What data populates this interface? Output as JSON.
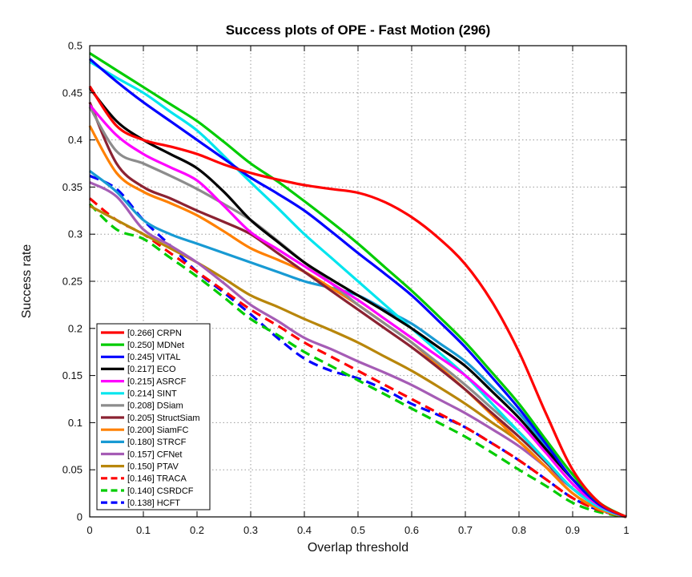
{
  "chart_data": {
    "type": "line",
    "title": "Success plots of OPE - Fast Motion (296)",
    "xlabel": "Overlap threshold",
    "ylabel": "Success rate",
    "xlim": [
      0,
      1
    ],
    "ylim": [
      0,
      0.5
    ],
    "grid": true,
    "legend_position": "bottom-left",
    "xticks": [
      0,
      0.1,
      0.2,
      0.3,
      0.4,
      0.5,
      0.6,
      0.7,
      0.8,
      0.9,
      1
    ],
    "xtick_labels": [
      "0",
      "0.1",
      "0.2",
      "0.3",
      "0.4",
      "0.5",
      "0.6",
      "0.7",
      "0.8",
      "0.9",
      "1"
    ],
    "yticks": [
      0,
      0.05,
      0.1,
      0.15,
      0.2,
      0.25,
      0.3,
      0.35,
      0.4,
      0.45,
      0.5
    ],
    "ytick_labels": [
      "0",
      "0.05",
      "0.1",
      "0.15",
      "0.2",
      "0.25",
      "0.3",
      "0.35",
      "0.4",
      "0.45",
      "0.5"
    ],
    "x": [
      0,
      0.05,
      0.1,
      0.15,
      0.2,
      0.25,
      0.3,
      0.35,
      0.4,
      0.45,
      0.5,
      0.55,
      0.6,
      0.65,
      0.7,
      0.75,
      0.8,
      0.85,
      0.9,
      0.95,
      1
    ],
    "series": [
      {
        "name": "CRPN",
        "auc": 0.266,
        "label": "[0.266] CRPN",
        "color": "#ff0000",
        "style": "solid",
        "values": [
          0.457,
          0.415,
          0.4,
          0.393,
          0.385,
          0.374,
          0.365,
          0.358,
          0.352,
          0.348,
          0.344,
          0.334,
          0.318,
          0.296,
          0.268,
          0.228,
          0.175,
          0.11,
          0.05,
          0.015,
          0
        ]
      },
      {
        "name": "MDNet",
        "auc": 0.25,
        "label": "[0.250] MDNet",
        "color": "#00cc00",
        "style": "solid",
        "values": [
          0.492,
          0.474,
          0.456,
          0.438,
          0.42,
          0.398,
          0.375,
          0.356,
          0.335,
          0.313,
          0.29,
          0.265,
          0.24,
          0.213,
          0.185,
          0.153,
          0.12,
          0.082,
          0.045,
          0.015,
          0
        ]
      },
      {
        "name": "VITAL",
        "auc": 0.245,
        "label": "[0.245] VITAL",
        "color": "#0000ff",
        "style": "solid",
        "values": [
          0.486,
          0.462,
          0.44,
          0.42,
          0.4,
          0.38,
          0.36,
          0.343,
          0.325,
          0.303,
          0.28,
          0.258,
          0.235,
          0.208,
          0.18,
          0.148,
          0.115,
          0.078,
          0.04,
          0.013,
          0
        ]
      },
      {
        "name": "ECO",
        "auc": 0.217,
        "label": "[0.217] ECO",
        "color": "#000000",
        "style": "solid",
        "values": [
          0.455,
          0.42,
          0.4,
          0.385,
          0.37,
          0.345,
          0.315,
          0.292,
          0.27,
          0.252,
          0.235,
          0.218,
          0.2,
          0.18,
          0.16,
          0.133,
          0.105,
          0.072,
          0.04,
          0.013,
          0
        ]
      },
      {
        "name": "ASRCF",
        "auc": 0.215,
        "label": "[0.215] ASRCF",
        "color": "#ff00ff",
        "style": "solid",
        "values": [
          0.437,
          0.405,
          0.385,
          0.371,
          0.357,
          0.33,
          0.302,
          0.284,
          0.266,
          0.248,
          0.23,
          0.21,
          0.19,
          0.17,
          0.15,
          0.125,
          0.1,
          0.068,
          0.035,
          0.012,
          0
        ]
      },
      {
        "name": "SINT",
        "auc": 0.214,
        "label": "[0.214] SINT",
        "color": "#00e5ee",
        "style": "solid",
        "values": [
          0.483,
          0.466,
          0.45,
          0.43,
          0.41,
          0.383,
          0.355,
          0.328,
          0.3,
          0.275,
          0.25,
          0.225,
          0.2,
          0.175,
          0.15,
          0.12,
          0.09,
          0.06,
          0.03,
          0.01,
          0
        ]
      },
      {
        "name": "DSiam",
        "auc": 0.208,
        "label": "[0.208] DSiam",
        "color": "#8c8c8c",
        "style": "solid",
        "values": [
          0.435,
          0.388,
          0.375,
          0.362,
          0.348,
          0.332,
          0.315,
          0.293,
          0.27,
          0.248,
          0.225,
          0.205,
          0.185,
          0.163,
          0.14,
          0.115,
          0.09,
          0.06,
          0.03,
          0.01,
          0
        ]
      },
      {
        "name": "StructSiam",
        "auc": 0.205,
        "label": "[0.205] StructSiam",
        "color": "#8b2232",
        "style": "solid",
        "values": [
          0.44,
          0.375,
          0.35,
          0.338,
          0.325,
          0.313,
          0.3,
          0.28,
          0.26,
          0.24,
          0.22,
          0.2,
          0.18,
          0.158,
          0.135,
          0.11,
          0.085,
          0.058,
          0.03,
          0.01,
          0
        ]
      },
      {
        "name": "SiamFC",
        "auc": 0.2,
        "label": "[0.200] SiamFC",
        "color": "#ff8000",
        "style": "solid",
        "values": [
          0.415,
          0.365,
          0.345,
          0.333,
          0.32,
          0.303,
          0.285,
          0.273,
          0.26,
          0.243,
          0.225,
          0.205,
          0.185,
          0.16,
          0.135,
          0.108,
          0.08,
          0.053,
          0.025,
          0.008,
          0
        ]
      },
      {
        "name": "STRCF",
        "auc": 0.18,
        "label": "[0.180] STRCF",
        "color": "#189ad3",
        "style": "solid",
        "values": [
          0.367,
          0.345,
          0.315,
          0.3,
          0.29,
          0.28,
          0.27,
          0.26,
          0.25,
          0.243,
          0.235,
          0.22,
          0.205,
          0.185,
          0.165,
          0.138,
          0.11,
          0.075,
          0.04,
          0.013,
          0
        ]
      },
      {
        "name": "CFNet",
        "auc": 0.157,
        "label": "[0.157] CFNet",
        "color": "#a55cb5",
        "style": "solid",
        "values": [
          0.355,
          0.34,
          0.305,
          0.288,
          0.27,
          0.248,
          0.225,
          0.208,
          0.19,
          0.178,
          0.165,
          0.153,
          0.14,
          0.125,
          0.11,
          0.093,
          0.075,
          0.053,
          0.03,
          0.01,
          0
        ]
      },
      {
        "name": "PTAV",
        "auc": 0.15,
        "label": "[0.150] PTAV",
        "color": "#b8860b",
        "style": "solid",
        "values": [
          0.33,
          0.315,
          0.3,
          0.285,
          0.27,
          0.253,
          0.235,
          0.223,
          0.21,
          0.198,
          0.185,
          0.17,
          0.155,
          0.138,
          0.12,
          0.1,
          0.08,
          0.053,
          0.025,
          0.008,
          0
        ]
      },
      {
        "name": "TRACA",
        "auc": 0.146,
        "label": "[0.146] TRACA",
        "color": "#ff0000",
        "style": "dashed",
        "values": [
          0.338,
          0.315,
          0.3,
          0.28,
          0.26,
          0.24,
          0.22,
          0.203,
          0.185,
          0.17,
          0.155,
          0.14,
          0.125,
          0.11,
          0.095,
          0.078,
          0.06,
          0.04,
          0.02,
          0.007,
          0
        ]
      },
      {
        "name": "CSRDCF",
        "auc": 0.14,
        "label": "[0.140] CSRDCF",
        "color": "#00cc00",
        "style": "dashed",
        "values": [
          0.332,
          0.305,
          0.295,
          0.275,
          0.255,
          0.233,
          0.21,
          0.193,
          0.175,
          0.16,
          0.145,
          0.13,
          0.115,
          0.1,
          0.085,
          0.068,
          0.05,
          0.033,
          0.015,
          0.005,
          0
        ]
      },
      {
        "name": "HCFT",
        "auc": 0.138,
        "label": "[0.138] HCFT",
        "color": "#0000ff",
        "style": "dashed",
        "values": [
          0.362,
          0.348,
          0.315,
          0.288,
          0.26,
          0.238,
          0.215,
          0.19,
          0.168,
          0.155,
          0.147,
          0.135,
          0.12,
          0.108,
          0.095,
          0.078,
          0.06,
          0.04,
          0.02,
          0.007,
          0
        ]
      }
    ]
  }
}
